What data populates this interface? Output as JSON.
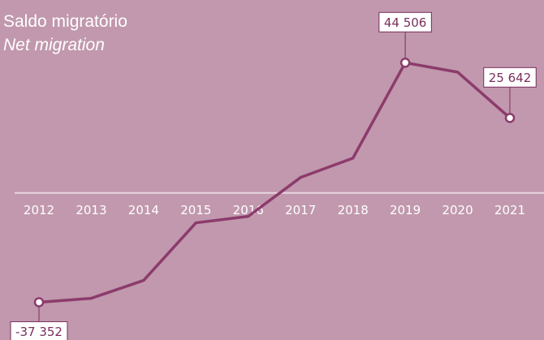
{
  "chart_data": {
    "type": "line",
    "title": "Saldo migratório",
    "subtitle": "Net migration",
    "categories": [
      "2012",
      "2013",
      "2014",
      "2015",
      "2016",
      "2017",
      "2018",
      "2019",
      "2020",
      "2021"
    ],
    "series": [
      {
        "name": "Net migration",
        "color": "#8c3b6c",
        "values": [
          -37352,
          -36000,
          -29900,
          -10200,
          -8000,
          5300,
          11900,
          44506,
          41300,
          25642
        ],
        "value_labels": [
          "-37 352",
          null,
          null,
          null,
          null,
          null,
          null,
          "44 506",
          null,
          "25 642"
        ]
      }
    ],
    "ylim": [
      -40000,
      50000
    ]
  }
}
